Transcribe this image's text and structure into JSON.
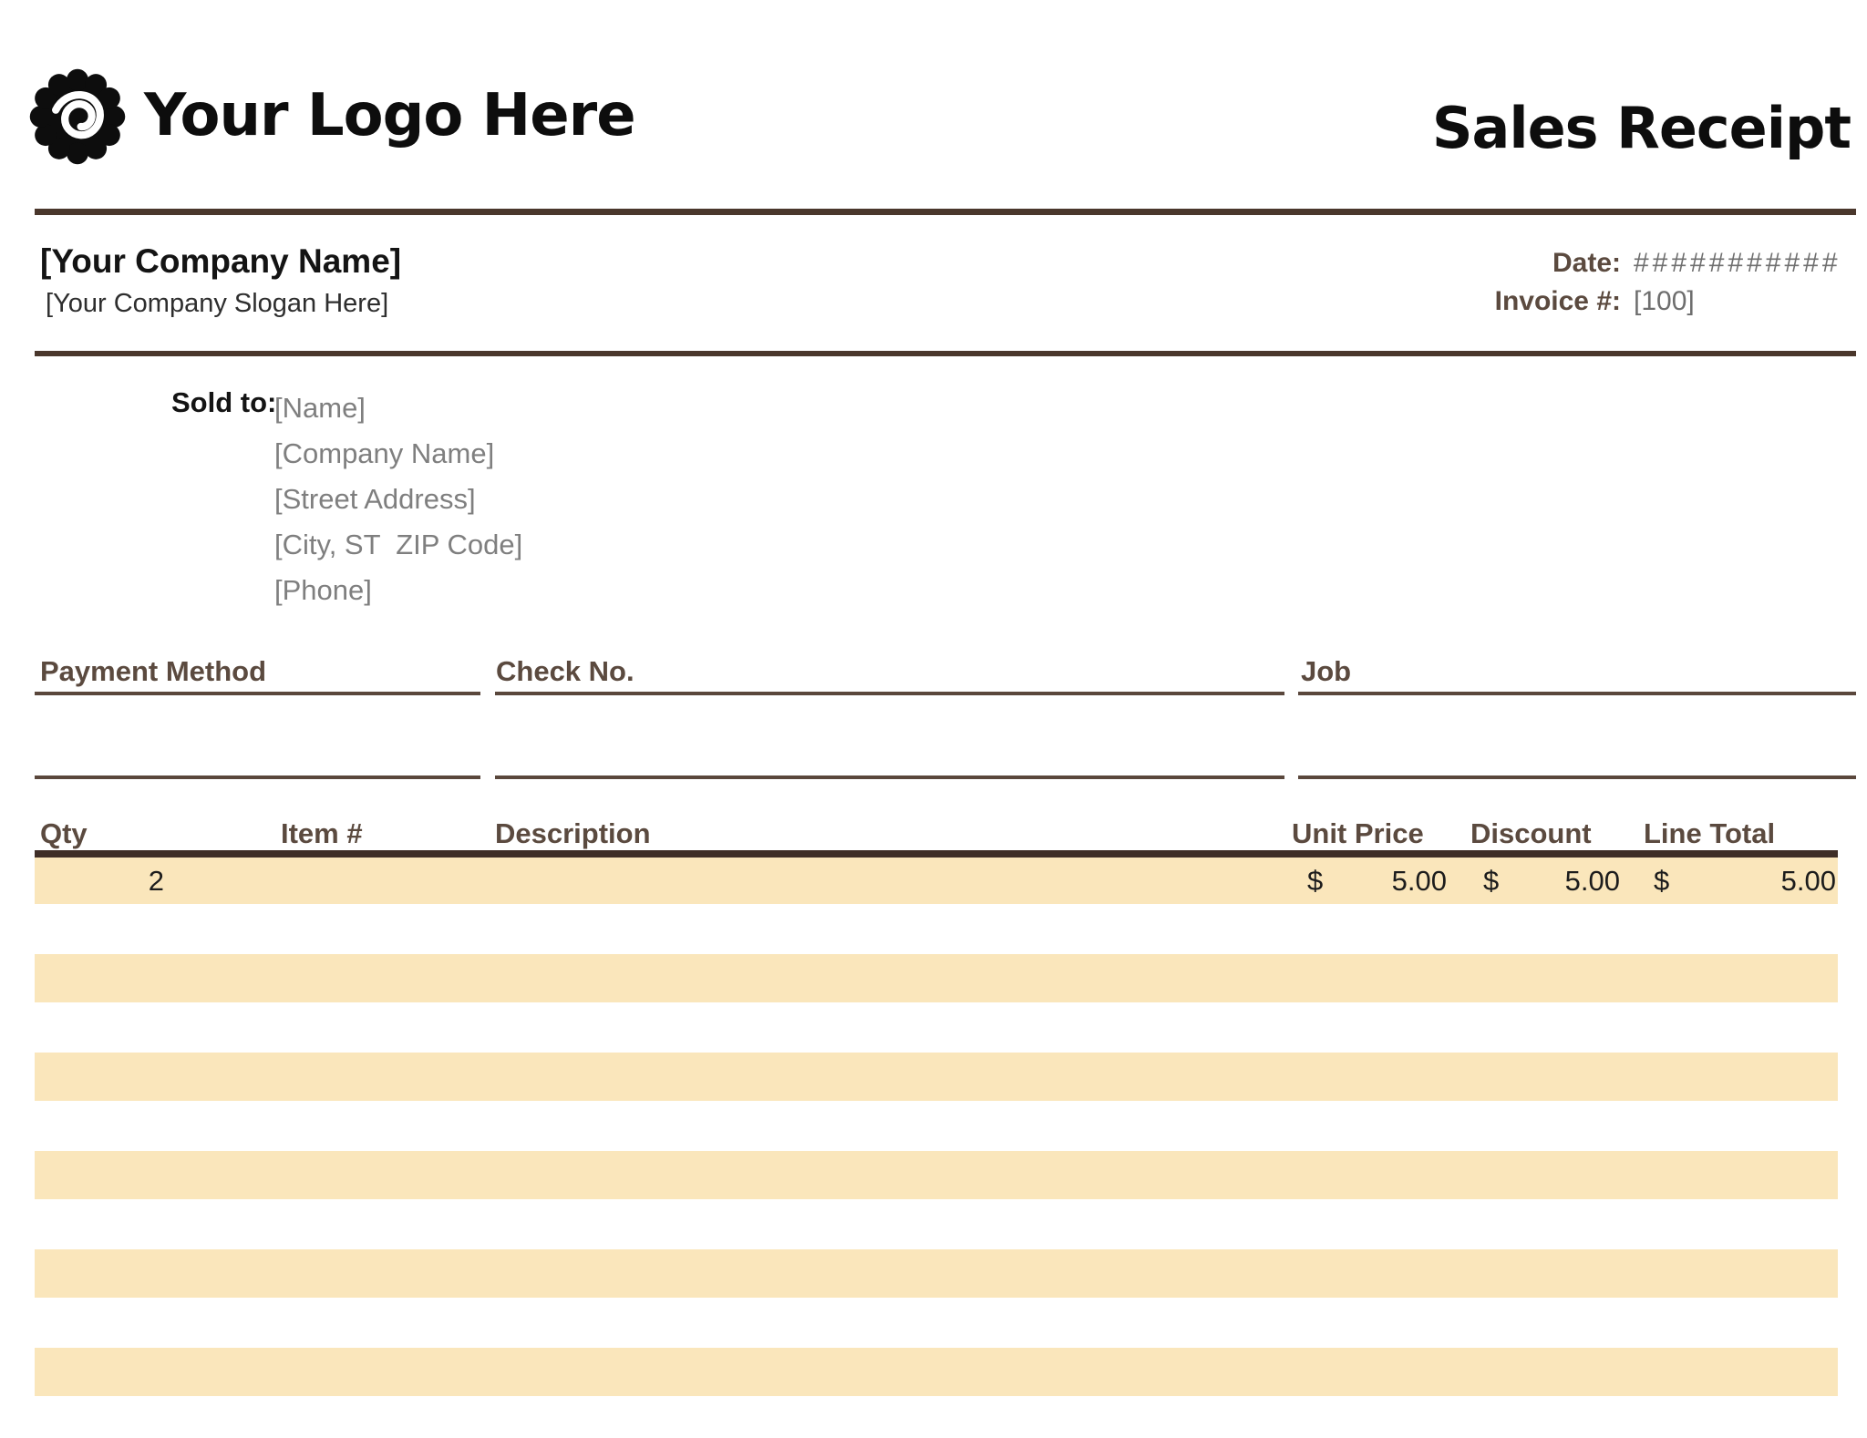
{
  "header": {
    "logo_text": "Your Logo Here",
    "logo_icon": "spiral-seal-icon",
    "title": "Sales Receipt"
  },
  "company": {
    "name": "[Your Company Name]",
    "slogan": "[Your Company Slogan Here]"
  },
  "meta": {
    "date_label": "Date:",
    "date_value": "###########",
    "invoice_label": "Invoice #:",
    "invoice_value": "[100]"
  },
  "sold_to": {
    "label": "Sold to:",
    "lines": [
      "[Name]",
      "[Company Name]",
      "[Street Address]",
      "[City, ST  ZIP Code]",
      "[Phone]"
    ]
  },
  "payment": {
    "method_label": "Payment Method",
    "check_label": "Check No.",
    "job_label": "Job"
  },
  "items_table": {
    "columns": [
      "Qty",
      "Item #",
      "Description",
      "Unit Price",
      "Discount",
      "Line Total"
    ],
    "currency_symbol": "$",
    "rows": [
      {
        "qty": "2",
        "item_number": "",
        "description": "",
        "unit_price": "5.00",
        "discount": "5.00",
        "line_total": "5.00"
      }
    ],
    "empty_row_count": 5
  },
  "colors": {
    "accent_brown": "#4a372c",
    "table_rule_brown": "#3f2e27",
    "header_text_brown": "#5b4a3f",
    "row_band_cream": "#fae6bb",
    "placeholder_gray": "#7f7f7f"
  }
}
